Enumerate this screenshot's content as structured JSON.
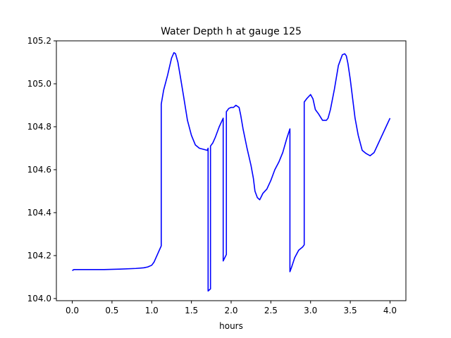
{
  "chart_data": {
    "type": "line",
    "title": "Water Depth h at gauge 125",
    "xlabel": "hours",
    "ylabel": "",
    "xlim": [
      -0.2,
      4.2
    ],
    "ylim": [
      103.99,
      105.2
    ],
    "x_ticks": [
      0.0,
      0.5,
      1.0,
      1.5,
      2.0,
      2.5,
      3.0,
      3.5,
      4.0
    ],
    "x_tick_labels": [
      "0.0",
      "0.5",
      "1.0",
      "1.5",
      "2.0",
      "2.5",
      "3.0",
      "3.5",
      "4.0"
    ],
    "y_ticks": [
      104.0,
      104.2,
      104.4,
      104.6,
      104.8,
      105.0,
      105.2
    ],
    "y_tick_labels": [
      "104.0",
      "104.2",
      "104.4",
      "104.6",
      "104.8",
      "105.0",
      "105.2"
    ],
    "grid": false,
    "legend": "none",
    "series": [
      {
        "color": "#0000ff",
        "x": [
          0.0,
          0.02,
          0.2,
          0.4,
          0.6,
          0.8,
          0.9,
          0.95,
          1.0,
          1.03,
          1.06,
          1.09,
          1.12,
          1.12,
          1.15,
          1.2,
          1.25,
          1.28,
          1.3,
          1.33,
          1.36,
          1.4,
          1.45,
          1.5,
          1.55,
          1.6,
          1.65,
          1.7,
          1.71,
          1.71,
          1.74,
          1.74,
          1.77,
          1.8,
          1.85,
          1.9,
          1.9,
          1.94,
          1.94,
          1.97,
          2.0,
          2.03,
          2.06,
          2.1,
          2.12,
          2.15,
          2.2,
          2.25,
          2.28,
          2.3,
          2.33,
          2.36,
          2.38,
          2.4,
          2.45,
          2.5,
          2.55,
          2.6,
          2.65,
          2.7,
          2.74,
          2.74,
          2.76,
          2.8,
          2.85,
          2.9,
          2.92,
          2.92,
          2.95,
          3.0,
          3.03,
          3.06,
          3.1,
          3.15,
          3.2,
          3.22,
          3.25,
          3.3,
          3.35,
          3.4,
          3.43,
          3.45,
          3.47,
          3.5,
          3.53,
          3.56,
          3.6,
          3.65,
          3.7,
          3.75,
          3.8,
          3.85,
          3.9,
          3.95,
          4.0
        ],
        "y": [
          104.13,
          104.135,
          104.135,
          104.135,
          104.137,
          104.14,
          104.143,
          104.147,
          104.155,
          104.17,
          104.195,
          104.22,
          104.245,
          104.905,
          104.97,
          105.04,
          105.12,
          105.145,
          105.14,
          105.1,
          105.035,
          104.945,
          104.83,
          104.76,
          104.715,
          104.7,
          104.695,
          104.69,
          104.7,
          104.035,
          104.045,
          104.71,
          104.725,
          104.75,
          104.8,
          104.84,
          104.175,
          104.205,
          104.87,
          104.885,
          104.89,
          104.89,
          104.9,
          104.89,
          104.855,
          104.79,
          104.7,
          104.62,
          104.56,
          104.5,
          104.47,
          104.46,
          104.475,
          104.49,
          104.51,
          104.55,
          104.6,
          104.635,
          104.68,
          104.745,
          104.79,
          104.125,
          104.145,
          104.19,
          104.225,
          104.24,
          104.25,
          104.915,
          104.93,
          104.95,
          104.93,
          104.88,
          104.86,
          104.83,
          104.83,
          104.84,
          104.88,
          104.975,
          105.085,
          105.135,
          105.14,
          105.13,
          105.095,
          105.02,
          104.93,
          104.84,
          104.76,
          104.69,
          104.675,
          104.665,
          104.68,
          104.72,
          104.76,
          104.8,
          104.84
        ]
      }
    ]
  }
}
